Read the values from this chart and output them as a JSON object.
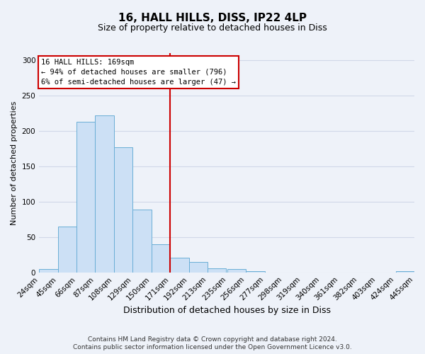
{
  "title": "16, HALL HILLS, DISS, IP22 4LP",
  "subtitle": "Size of property relative to detached houses in Diss",
  "xlabel": "Distribution of detached houses by size in Diss",
  "ylabel": "Number of detached properties",
  "footnote1": "Contains HM Land Registry data © Crown copyright and database right 2024.",
  "footnote2": "Contains public sector information licensed under the Open Government Licence v3.0.",
  "bar_edges": [
    24,
    45,
    66,
    87,
    108,
    129,
    150,
    171,
    192,
    213,
    235,
    256,
    277,
    298,
    319,
    340,
    361,
    382,
    403,
    424,
    445
  ],
  "bar_heights": [
    5,
    65,
    213,
    222,
    177,
    89,
    40,
    21,
    15,
    6,
    5,
    2,
    0,
    0,
    0,
    0,
    0,
    0,
    0,
    2
  ],
  "bar_color": "#cce0f5",
  "bar_edgecolor": "#6aaed6",
  "grid_color": "#d0d8e8",
  "background_color": "#eef2f9",
  "vline_x": 171,
  "vline_color": "#cc0000",
  "annotation_title": "16 HALL HILLS: 169sqm",
  "annotation_line1": "← 94% of detached houses are smaller (796)",
  "annotation_line2": "6% of semi-detached houses are larger (47) →",
  "annotation_box_edgecolor": "#cc0000",
  "annotation_box_facecolor": "#ffffff",
  "ylim": [
    0,
    310
  ],
  "yticks": [
    0,
    50,
    100,
    150,
    200,
    250,
    300
  ],
  "title_fontsize": 11,
  "subtitle_fontsize": 9,
  "ylabel_fontsize": 8,
  "xlabel_fontsize": 9,
  "tick_fontsize": 7.5,
  "footnote_fontsize": 6.5
}
